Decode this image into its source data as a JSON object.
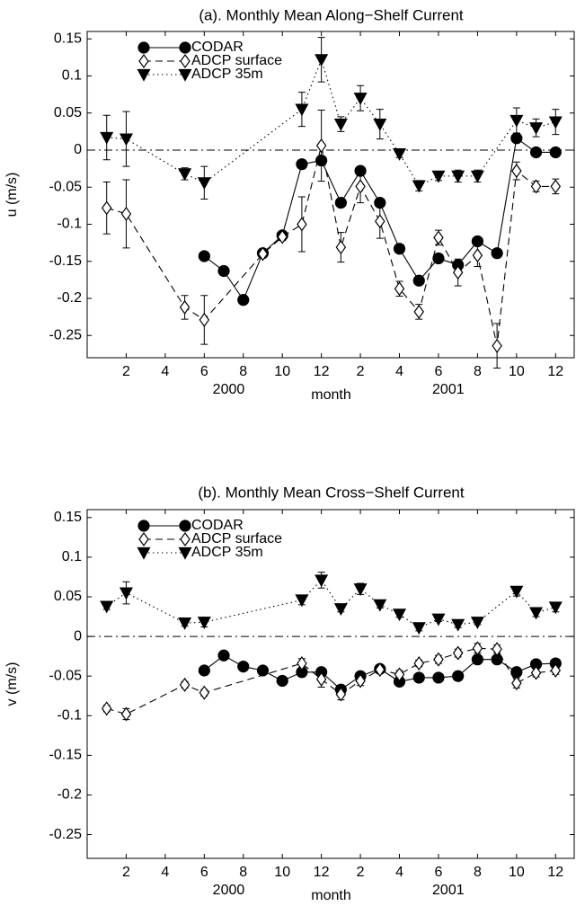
{
  "chart_data": [
    {
      "type": "line",
      "title": "(a). Monthly Mean Along−Shelf Current",
      "ylabel": "u (m/s)",
      "xlabel": "month",
      "annotations": [
        "2000",
        "2001"
      ],
      "xlim": [
        0,
        25
      ],
      "ylim": [
        -0.28,
        0.16
      ],
      "zero_line": 0,
      "xticks": [
        2,
        4,
        6,
        8,
        10,
        12,
        {
          "value": 14,
          "label": "2"
        },
        {
          "value": 16,
          "label": "4"
        },
        {
          "value": 18,
          "label": "6"
        },
        {
          "value": 20,
          "label": "8"
        },
        {
          "value": 22,
          "label": "10"
        },
        {
          "value": 24,
          "label": "12"
        }
      ],
      "yticks": [
        0.15,
        0.1,
        0.05,
        0,
        -0.05,
        -0.1,
        -0.15,
        -0.2,
        -0.25
      ],
      "series": [
        {
          "name": "CODAR",
          "color": "#000000",
          "marker": "circle",
          "linestyle": "solid",
          "x": [
            6,
            7,
            8,
            9,
            10,
            11,
            12,
            13,
            14,
            15,
            16,
            17,
            18,
            19,
            20,
            21,
            22,
            23,
            24
          ],
          "values": [
            -0.143,
            -0.163,
            -0.202,
            -0.139,
            -0.115,
            -0.019,
            -0.014,
            -0.071,
            -0.028,
            -0.071,
            -0.133,
            -0.176,
            -0.146,
            -0.155,
            -0.123,
            -0.139,
            0.016,
            -0.003,
            -0.003
          ]
        },
        {
          "name": "ADCP surface",
          "color": "#000000",
          "marker": "diamond",
          "linestyle": "dashed",
          "x": [
            1,
            2,
            5,
            6,
            9,
            10,
            11,
            12,
            13,
            14,
            15,
            16,
            17,
            18,
            19,
            20,
            21,
            22,
            23,
            24
          ],
          "values": [
            -0.078,
            -0.086,
            -0.212,
            -0.229,
            -0.14,
            -0.117,
            -0.1,
            0.006,
            -0.131,
            -0.049,
            -0.096,
            -0.187,
            -0.218,
            -0.118,
            -0.165,
            -0.142,
            -0.264,
            -0.028,
            -0.049,
            -0.049
          ],
          "errors": [
            0.035,
            0.046,
            0.016,
            0.033,
            0.005,
            0.005,
            0.037,
            0.048,
            0.02,
            0.022,
            0.023,
            0.01,
            0.01,
            0.01,
            0.018,
            0.015,
            0.03,
            0.012,
            0.007,
            0.01
          ]
        },
        {
          "name": "ADCP 35m",
          "color": "#000000",
          "marker": "triangle",
          "linestyle": "dotted",
          "x": [
            1,
            2,
            5,
            6,
            11,
            12,
            13,
            14,
            15,
            16,
            17,
            18,
            19,
            20,
            22,
            23,
            24
          ],
          "values": [
            0.017,
            0.015,
            -0.032,
            -0.044,
            0.055,
            0.122,
            0.035,
            0.07,
            0.035,
            -0.005,
            -0.048,
            -0.035,
            -0.035,
            -0.035,
            0.04,
            0.03,
            0.038
          ],
          "errors": [
            0.03,
            0.037,
            0.008,
            0.022,
            0.023,
            0.03,
            0.01,
            0.017,
            0.02,
            0.005,
            0.007,
            0.006,
            0.008,
            0.008,
            0.017,
            0.012,
            0.017
          ]
        }
      ]
    },
    {
      "type": "line",
      "title": "(b). Monthly Mean Cross−Shelf Current",
      "ylabel": "v (m/s)",
      "xlabel": "month",
      "annotations": [
        "2000",
        "2001"
      ],
      "xlim": [
        0,
        25
      ],
      "ylim": [
        -0.28,
        0.16
      ],
      "zero_line": 0,
      "xticks": [
        2,
        4,
        6,
        8,
        10,
        12,
        {
          "value": 14,
          "label": "2"
        },
        {
          "value": 16,
          "label": "4"
        },
        {
          "value": 18,
          "label": "6"
        },
        {
          "value": 20,
          "label": "8"
        },
        {
          "value": 22,
          "label": "10"
        },
        {
          "value": 24,
          "label": "12"
        }
      ],
      "yticks": [
        0.15,
        0.1,
        0.05,
        0,
        -0.05,
        -0.1,
        -0.15,
        -0.2,
        -0.25
      ],
      "series": [
        {
          "name": "CODAR",
          "color": "#000000",
          "marker": "circle",
          "linestyle": "solid",
          "x": [
            6,
            7,
            8,
            9,
            10,
            11,
            12,
            13,
            14,
            15,
            16,
            17,
            18,
            19,
            20,
            21,
            22,
            23,
            24
          ],
          "values": [
            -0.043,
            -0.024,
            -0.038,
            -0.043,
            -0.056,
            -0.045,
            -0.045,
            -0.067,
            -0.05,
            -0.041,
            -0.057,
            -0.052,
            -0.052,
            -0.05,
            -0.029,
            -0.029,
            -0.045,
            -0.035,
            -0.034
          ]
        },
        {
          "name": "ADCP surface",
          "color": "#000000",
          "marker": "diamond",
          "linestyle": "dashed",
          "x": [
            1,
            2,
            5,
            6,
            11,
            12,
            13,
            14,
            15,
            16,
            17,
            18,
            19,
            20,
            21,
            22,
            23,
            24
          ],
          "values": [
            -0.091,
            -0.098,
            -0.061,
            -0.071,
            -0.034,
            -0.054,
            -0.073,
            -0.056,
            -0.042,
            -0.048,
            -0.034,
            -0.029,
            -0.021,
            -0.015,
            -0.016,
            -0.059,
            -0.046,
            -0.043
          ],
          "errors": [
            0.004,
            0.007,
            0.004,
            0.004,
            0.006,
            0.01,
            0.007,
            0.006,
            0.004,
            0.005,
            0.004,
            0.005,
            0.005,
            0.006,
            0.005,
            0.006,
            0.005,
            0.005
          ]
        },
        {
          "name": "ADCP 35m",
          "color": "#000000",
          "marker": "triangle",
          "linestyle": "dotted",
          "x": [
            1,
            2,
            5,
            6,
            11,
            12,
            13,
            14,
            15,
            16,
            17,
            18,
            19,
            20,
            22,
            23,
            24
          ],
          "values": [
            0.038,
            0.055,
            0.017,
            0.018,
            0.046,
            0.071,
            0.035,
            0.06,
            0.04,
            0.028,
            0.011,
            0.022,
            0.015,
            0.018,
            0.057,
            0.03,
            0.037
          ],
          "errors": [
            0.004,
            0.014,
            0.004,
            0.006,
            0.006,
            0.01,
            0.004,
            0.007,
            0.004,
            0.004,
            0.004,
            0.003,
            0.004,
            0.003,
            0.006,
            0.005,
            0.006
          ]
        }
      ]
    }
  ]
}
